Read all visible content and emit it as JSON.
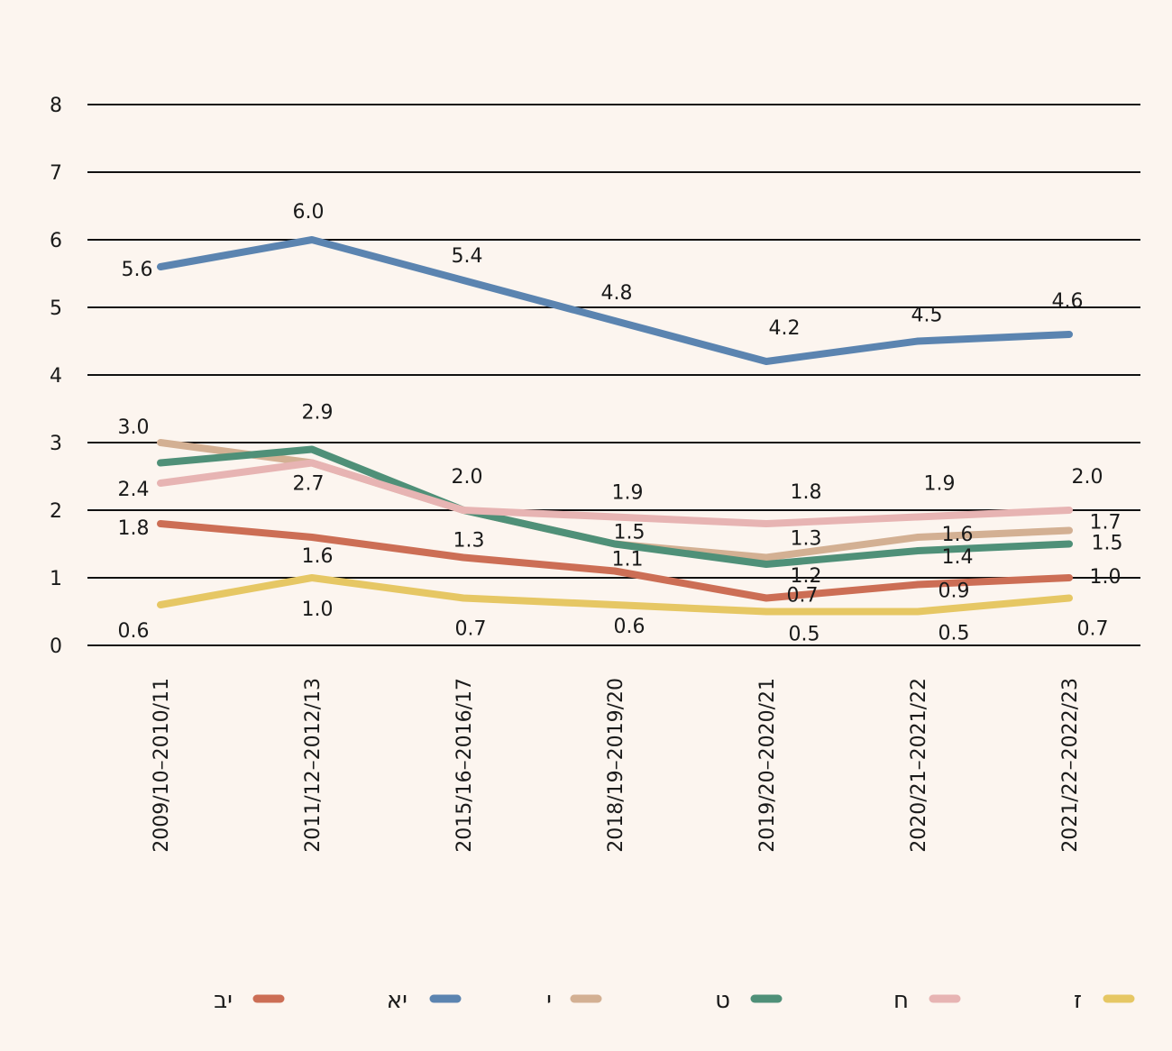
{
  "chart_data": {
    "type": "line",
    "title": "",
    "xlabel": "",
    "ylabel": "",
    "ylim": [
      0,
      8
    ],
    "yticks": [
      "0",
      "1",
      "2",
      "3",
      "4",
      "5",
      "6",
      "7",
      "8"
    ],
    "grid": true,
    "legend_position": "bottom",
    "categories": [
      "2009/10–2010/11",
      "2011/12–2012/13",
      "2015/16–2016/17",
      "2018/19–2019/20",
      "2019/20–2020/21",
      "2020/21–2021/22",
      "2021/22–2022/23"
    ],
    "series": [
      {
        "name": "יב",
        "color": "#cc6e55",
        "values": [
          1.8,
          1.6,
          1.3,
          1.1,
          0.7,
          0.9,
          1.0
        ],
        "labels": [
          "1.8",
          "1.6",
          "1.3",
          "1.1",
          "0.7",
          "0.9",
          "1.0"
        ]
      },
      {
        "name": "יא",
        "color": "#5b84b0",
        "values": [
          5.6,
          6.0,
          5.4,
          4.8,
          4.2,
          4.5,
          4.6
        ],
        "labels": [
          "5.6",
          "6.0",
          "5.4",
          "4.8",
          "4.2",
          "4.5",
          "4.6"
        ]
      },
      {
        "name": "י",
        "color": "#d3b093",
        "values": [
          3.0,
          2.7,
          2.0,
          1.5,
          1.3,
          1.6,
          1.7
        ],
        "labels": [
          "3.0",
          "2.7",
          "2.0",
          "1.5",
          "1.3",
          "1.6",
          "1.7"
        ]
      },
      {
        "name": "ט",
        "color": "#4f9078",
        "values": [
          2.7,
          2.9,
          2.0,
          1.5,
          1.2,
          1.4,
          1.5
        ],
        "labels": [
          "",
          "2.9",
          "",
          "",
          "1.2",
          "1.4",
          "1.5"
        ]
      },
      {
        "name": "ח",
        "color": "#e7b4b3",
        "values": [
          2.4,
          2.7,
          2.0,
          1.9,
          1.8,
          1.9,
          2.0
        ],
        "labels": [
          "2.4",
          "",
          "",
          "1.9",
          "1.8",
          "1.9",
          "2.0"
        ]
      },
      {
        "name": "ז",
        "color": "#e6c764",
        "values": [
          0.6,
          1.0,
          0.7,
          0.6,
          0.5,
          0.5,
          0.7
        ],
        "labels": [
          "0.6",
          "1.0",
          "0.7",
          "0.6",
          "0.5",
          "0.5",
          "0.7"
        ]
      }
    ]
  }
}
